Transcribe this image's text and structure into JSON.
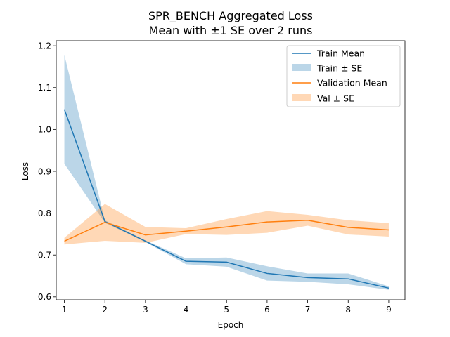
{
  "chart_data": {
    "type": "line",
    "title": "SPR_BENCH Aggregated Loss",
    "subtitle": "Mean with ±1 SE over 2 runs",
    "xlabel": "Epoch",
    "ylabel": "Loss",
    "xlim": [
      0.8,
      9.4
    ],
    "ylim": [
      0.593,
      1.212
    ],
    "x": [
      1,
      2,
      3,
      4,
      5,
      6,
      7,
      8,
      9
    ],
    "xticks": [
      "1",
      "2",
      "3",
      "4",
      "5",
      "6",
      "7",
      "8",
      "9"
    ],
    "yticks": [
      0.6,
      0.7,
      0.8,
      0.9,
      1.0,
      1.1,
      1.2
    ],
    "ytick_labels": [
      "0.6",
      "0.7",
      "0.8",
      "0.9",
      "1.0",
      "1.1",
      "1.2"
    ],
    "grid": false,
    "legend_position": "top-right",
    "series": [
      {
        "name": "Train Mean",
        "band_name": "Train ± SE",
        "color": "#1f77b4",
        "band_color": "#1f77b4",
        "values": [
          1.048,
          0.78,
          0.733,
          0.685,
          0.683,
          0.656,
          0.646,
          0.643,
          0.621
        ],
        "se": [
          0.13,
          0.003,
          0.002,
          0.007,
          0.011,
          0.017,
          0.01,
          0.013,
          0.004
        ]
      },
      {
        "name": "Validation Mean",
        "band_name": "Val ± SE",
        "color": "#ff7f0e",
        "band_color": "#ff7f0e",
        "values": [
          0.733,
          0.778,
          0.748,
          0.757,
          0.767,
          0.779,
          0.783,
          0.766,
          0.76
        ],
        "se": [
          0.008,
          0.044,
          0.019,
          0.007,
          0.019,
          0.026,
          0.013,
          0.017,
          0.016
        ]
      }
    ]
  }
}
